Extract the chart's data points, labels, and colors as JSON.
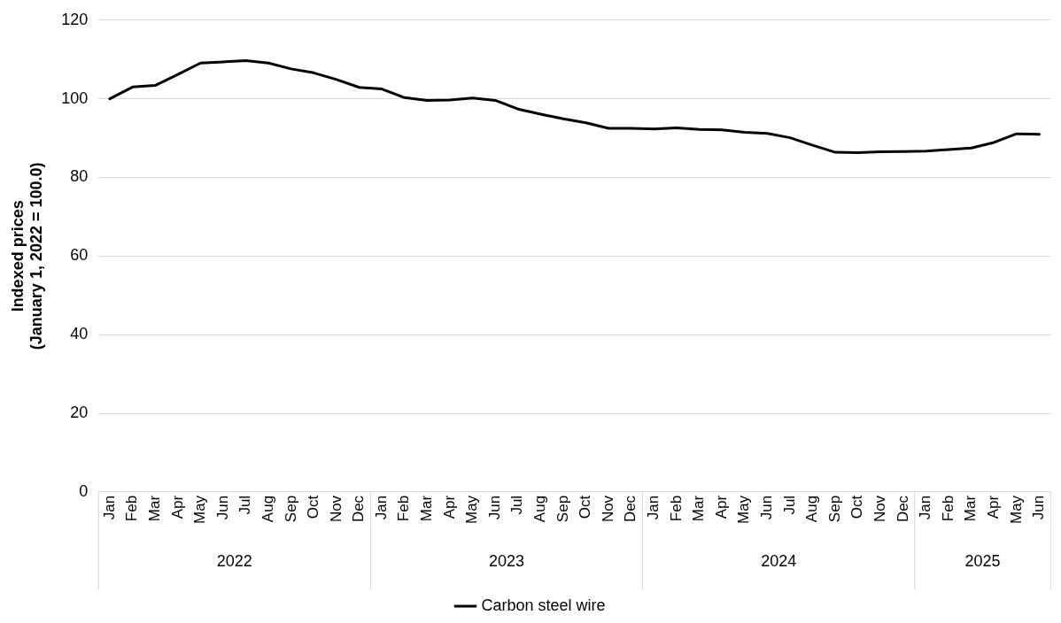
{
  "chart_data": {
    "type": "line",
    "ylabel": "Indexed prices\n(January 1, 2022 = 100.0)",
    "categories": [
      "Jan",
      "Feb",
      "Mar",
      "Apr",
      "May",
      "Jun",
      "Jul",
      "Aug",
      "Sep",
      "Oct",
      "Nov",
      "Dec",
      "Jan",
      "Feb",
      "Mar",
      "Apr",
      "May",
      "Jun",
      "Jul",
      "Aug",
      "Sep",
      "Oct",
      "Nov",
      "Dec",
      "Jan",
      "Feb",
      "Mar",
      "Apr",
      "May",
      "Jun",
      "Jul",
      "Aug",
      "Sep",
      "Oct",
      "Nov",
      "Dec",
      "Jan",
      "Feb",
      "Mar",
      "Apr",
      "May",
      "Jun"
    ],
    "series": [
      {
        "name": "Carbon steel wire",
        "color": "#000000",
        "values": [
          100,
          103,
          103.4,
          106.2,
          109.1,
          109.4,
          109.7,
          109.1,
          107.6,
          106.6,
          104.9,
          102.9,
          102.5,
          100.3,
          99.6,
          99.7,
          100.2,
          99.6,
          97.4,
          96.1,
          94.9,
          93.9,
          92.5,
          92.5,
          92.3,
          92.6,
          92.2,
          92.1,
          91.5,
          91.2,
          90.1,
          88.2,
          86.4,
          86.3,
          86.5,
          86.6,
          86.7,
          87.1,
          87.5,
          88.9,
          91.1,
          91.0
        ]
      }
    ],
    "annotations": [
      "2022",
      "2023",
      "2024",
      "2025"
    ],
    "ylim": [
      0,
      120
    ],
    "yticks": [
      0,
      20,
      40,
      60,
      80,
      100,
      120
    ],
    "grid": "y",
    "legend": "bottom",
    "marker": "none",
    "line_style": "solid"
  }
}
